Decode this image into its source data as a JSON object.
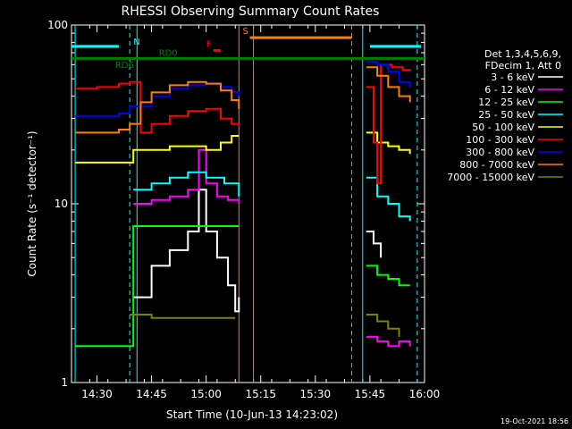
{
  "chart_data": {
    "type": "line",
    "title": "RHESSI Observing Summary Count Rates",
    "xlabel": "Start Time (10-Jun-13 14:23:02)",
    "ylabel": "Count Rate (s⁻¹ detector⁻¹)",
    "y_scale": "log",
    "ylim": [
      1,
      100
    ],
    "xlim": [
      "14:23",
      "16:00"
    ],
    "x_ticks": [
      "14:30",
      "14:45",
      "15:00",
      "15:15",
      "15:30",
      "15:45",
      "16:00"
    ],
    "y_ticks": [
      "1",
      "10",
      "100"
    ],
    "legend_header": [
      "Det 1,3,4,5,6,9,",
      "FDecim 1, Att 0"
    ],
    "legend_position": "right",
    "series": [
      {
        "name": "3 - 6 keV",
        "color": "#ffffff",
        "points": [
          [
            "14:40",
            3.0
          ],
          [
            "14:45",
            4.5
          ],
          [
            "14:50",
            5.5
          ],
          [
            "14:55",
            7
          ],
          [
            "14:58",
            12
          ],
          [
            "15:00",
            7
          ],
          [
            "15:03",
            5
          ],
          [
            "15:06",
            3.5
          ],
          [
            "15:08",
            2.5
          ],
          [
            "15:09",
            3
          ],
          [
            "15:44",
            7
          ],
          [
            "15:46",
            6
          ],
          [
            "15:48",
            5
          ]
        ]
      },
      {
        "name": "6 - 12 keV",
        "color": "#ff00ff",
        "points": [
          [
            "14:40",
            10
          ],
          [
            "14:45",
            10.5
          ],
          [
            "14:50",
            11
          ],
          [
            "14:55",
            12
          ],
          [
            "14:58",
            20
          ],
          [
            "15:00",
            13
          ],
          [
            "15:03",
            11
          ],
          [
            "15:06",
            10.5
          ],
          [
            "15:09",
            10
          ],
          [
            "15:44",
            1.8
          ],
          [
            "15:47",
            1.7
          ],
          [
            "15:50",
            1.6
          ],
          [
            "15:53",
            1.7
          ],
          [
            "15:56",
            1.6
          ]
        ]
      },
      {
        "name": "12 - 25 keV",
        "color": "#00ff00",
        "points": [
          [
            "14:24",
            1.6
          ],
          [
            "14:30",
            1.6
          ],
          [
            "14:38",
            1.6
          ],
          [
            "14:40",
            7.5
          ],
          [
            "14:45",
            7.5
          ],
          [
            "14:50",
            7.5
          ],
          [
            "14:55",
            7.5
          ],
          [
            "15:00",
            7.5
          ],
          [
            "15:05",
            7.5
          ],
          [
            "15:09",
            7.5
          ],
          [
            "15:44",
            4.5
          ],
          [
            "15:47",
            4.0
          ],
          [
            "15:50",
            3.8
          ],
          [
            "15:53",
            3.5
          ],
          [
            "15:56",
            3.5
          ]
        ]
      },
      {
        "name": "25 - 50 keV",
        "color": "#00ffff",
        "points": [
          [
            "14:40",
            12
          ],
          [
            "14:45",
            13
          ],
          [
            "14:50",
            14
          ],
          [
            "14:55",
            15
          ],
          [
            "15:00",
            14
          ],
          [
            "15:05",
            13
          ],
          [
            "15:09",
            11
          ],
          [
            "15:44",
            14
          ],
          [
            "15:47",
            11
          ],
          [
            "15:50",
            10
          ],
          [
            "15:53",
            8.5
          ],
          [
            "15:56",
            8.0
          ]
        ]
      },
      {
        "name": "50 - 100 keV",
        "color": "#ffff00",
        "points": [
          [
            "14:24",
            17
          ],
          [
            "14:30",
            17
          ],
          [
            "14:37",
            17
          ],
          [
            "14:40",
            20
          ],
          [
            "14:45",
            20
          ],
          [
            "14:50",
            21
          ],
          [
            "14:55",
            21
          ],
          [
            "15:00",
            20
          ],
          [
            "15:04",
            22
          ],
          [
            "15:07",
            24
          ],
          [
            "15:09",
            24
          ],
          [
            "15:44",
            25
          ],
          [
            "15:47",
            22
          ],
          [
            "15:50",
            21
          ],
          [
            "15:53",
            20
          ],
          [
            "15:56",
            19
          ]
        ]
      },
      {
        "name": "100 - 300 keV",
        "color": "#ff0000",
        "points": [
          [
            "14:24",
            44
          ],
          [
            "14:30",
            45
          ],
          [
            "14:36",
            47
          ],
          [
            "14:39",
            48
          ],
          [
            "14:42",
            25
          ],
          [
            "14:45",
            28
          ],
          [
            "14:50",
            31
          ],
          [
            "14:55",
            33
          ],
          [
            "15:00",
            34
          ],
          [
            "15:04",
            30
          ],
          [
            "15:07",
            28
          ],
          [
            "15:09",
            27
          ],
          [
            "15:44",
            45
          ],
          [
            "15:46",
            22
          ],
          [
            "15:47",
            13
          ],
          [
            "15:48",
            60
          ],
          [
            "15:51",
            58
          ],
          [
            "15:54",
            56
          ],
          [
            "15:56",
            55
          ]
        ]
      },
      {
        "name": "300 - 800 keV",
        "color": "#0000ff",
        "points": [
          [
            "14:24",
            31
          ],
          [
            "14:30",
            31
          ],
          [
            "14:36",
            32
          ],
          [
            "14:39",
            35
          ],
          [
            "14:42",
            35
          ],
          [
            "14:45",
            40
          ],
          [
            "14:50",
            44
          ],
          [
            "14:55",
            46
          ],
          [
            "15:00",
            47
          ],
          [
            "15:04",
            45
          ],
          [
            "15:07",
            42
          ],
          [
            "15:09",
            40
          ],
          [
            "15:44",
            62
          ],
          [
            "15:47",
            60
          ],
          [
            "15:50",
            55
          ],
          [
            "15:53",
            48
          ],
          [
            "15:56",
            45
          ]
        ]
      },
      {
        "name": "800 - 7000 keV",
        "color": "#ff7f00",
        "points": [
          [
            "14:24",
            25
          ],
          [
            "14:30",
            25
          ],
          [
            "14:36",
            26
          ],
          [
            "14:39",
            28
          ],
          [
            "14:42",
            37
          ],
          [
            "14:45",
            42
          ],
          [
            "14:50",
            46
          ],
          [
            "14:55",
            48
          ],
          [
            "15:00",
            47
          ],
          [
            "15:04",
            43
          ],
          [
            "15:07",
            38
          ],
          [
            "15:09",
            34
          ],
          [
            "15:44",
            58
          ],
          [
            "15:47",
            52
          ],
          [
            "15:50",
            45
          ],
          [
            "15:53",
            40
          ],
          [
            "15:56",
            37
          ]
        ]
      },
      {
        "name": "7000 - 15000 keV",
        "color": "#808000",
        "points": [
          [
            "14:39",
            2.4
          ],
          [
            "14:45",
            2.3
          ],
          [
            "14:50",
            2.3
          ],
          [
            "14:55",
            2.3
          ],
          [
            "15:00",
            2.3
          ],
          [
            "15:05",
            2.3
          ],
          [
            "15:08",
            2.3
          ],
          [
            "15:44",
            2.4
          ],
          [
            "15:47",
            2.2
          ],
          [
            "15:50",
            2.0
          ],
          [
            "15:53",
            1.8
          ]
        ]
      }
    ],
    "state_bars": [
      {
        "label": "RD0",
        "color": "#008000",
        "value": 65,
        "start": "14:23",
        "end": "16:00"
      },
      {
        "label": "",
        "color": "#00ffff",
        "value": 76,
        "start": "14:23",
        "end": "14:36"
      },
      {
        "label": "",
        "color": "#00ffff",
        "value": 76,
        "start": "15:45",
        "end": "15:59"
      },
      {
        "label": "S",
        "color": "#ff7f00",
        "value": 85,
        "start": "15:12",
        "end": "15:40"
      },
      {
        "label": "F",
        "color": "#ff0000",
        "value": 72,
        "start": "15:02",
        "end": "15:04"
      }
    ],
    "markers": [
      {
        "label": "N",
        "color": "#00ffff",
        "time": "14:40"
      },
      {
        "label": "RD6",
        "color": "#008000",
        "time": "14:35"
      }
    ],
    "vertical_lines": [
      {
        "time": "14:24",
        "color": "#00ffff",
        "style": "solid"
      },
      {
        "time": "14:39",
        "color": "#00ffff",
        "style": "dashed"
      },
      {
        "time": "14:41",
        "color": "#00ffff",
        "style": "solid"
      },
      {
        "time": "15:09",
        "color": "#ff7f00",
        "style": "solid"
      },
      {
        "time": "15:13",
        "color": "#ff7f00",
        "style": "solid"
      },
      {
        "time": "15:40",
        "color": "#ff7f00",
        "style": "dashed"
      },
      {
        "time": "15:43",
        "color": "#00ffff",
        "style": "solid"
      },
      {
        "time": "15:58",
        "color": "#00ffff",
        "style": "dashed"
      }
    ],
    "timestamp": "19-Oct-2021 18:56"
  }
}
